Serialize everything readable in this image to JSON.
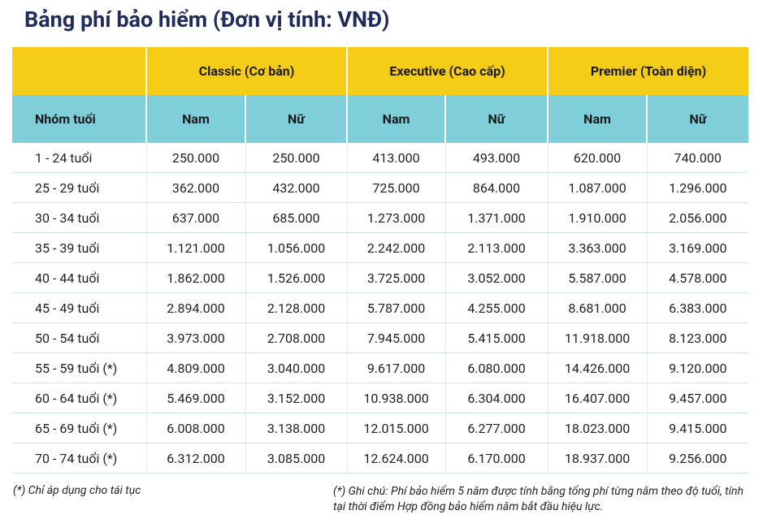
{
  "header": {
    "title": "Bảng phí bảo hiểm (Đơn vị tính: VNĐ)"
  },
  "table": {
    "groups": [
      "Classic (Cơ bản)",
      "Executive (Cao cấp)",
      "Premier (Toàn diện)"
    ],
    "subheaders": [
      "Nhóm tuổi",
      "Nam",
      "Nữ",
      "Nam",
      "Nữ",
      "Nam",
      "Nữ"
    ],
    "rows": [
      [
        "1 - 24 tuổi",
        "250.000",
        "250.000",
        "413.000",
        "493.000",
        "620.000",
        "740.000"
      ],
      [
        "25 - 29 tuổi",
        "362.000",
        "432.000",
        "725.000",
        "864.000",
        "1.087.000",
        "1.296.000"
      ],
      [
        "30 - 34 tuổi",
        "637.000",
        "685.000",
        "1.273.000",
        "1.371.000",
        "1.910.000",
        "2.056.000"
      ],
      [
        "35 - 39 tuổi",
        "1.121.000",
        "1.056.000",
        "2.242.000",
        "2.113.000",
        "3.363.000",
        "3.169.000"
      ],
      [
        "40 - 44 tuổi",
        "1.862.000",
        "1.526.000",
        "3.725.000",
        "3.052.000",
        "5.587.000",
        "4.578.000"
      ],
      [
        "45 - 49 tuổi",
        "2.894.000",
        "2.128.000",
        "5.787.000",
        "4.255.000",
        "8.681.000",
        "6.383.000"
      ],
      [
        "50 - 54 tuổi",
        "3.973.000",
        "2.708.000",
        "7.945.000",
        "5.415.000",
        "11.918.000",
        "8.123.000"
      ],
      [
        "55 - 59 tuổi (*)",
        "4.809.000",
        "3.040.000",
        "9.617.000",
        "6.080.000",
        "14.426.000",
        "9.120.000"
      ],
      [
        "60 - 64 tuổi (*)",
        "5.469.000",
        "3.152.000",
        "10.938.000",
        "6.304.000",
        "16.407.000",
        "9.457.000"
      ],
      [
        "65 - 69 tuổi (*)",
        "6.008.000",
        "3.138.000",
        "12.015.000",
        "6.277.000",
        "18.023.000",
        "9.415.000"
      ],
      [
        "70 - 74 tuổi (*)",
        "6.312.000",
        "3.085.000",
        "12.624.000",
        "6.170.000",
        "18.937.000",
        "9.256.000"
      ]
    ]
  },
  "footnotes": {
    "left": "(*) Chỉ áp dụng cho tái tục",
    "right": "(*) Ghi chú: Phí bảo hiểm 5 năm được tính bằng tổng phí từng năm theo độ tuổi, tính tại thời điểm Hợp đồng bảo hiểm năm bắt đầu hiệu lực."
  }
}
